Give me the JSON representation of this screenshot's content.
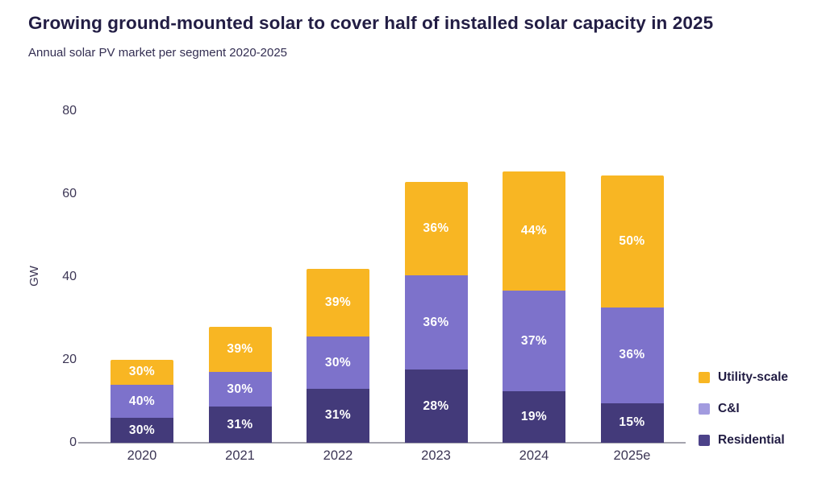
{
  "header": {
    "title": "Growing ground-mounted solar to cover half of installed solar capacity in 2025",
    "subtitle": "Annual solar PV market per segment 2020-2025"
  },
  "colors": {
    "background": "#ffffff",
    "title_text": "#221d44",
    "axis_text": "#3c3655",
    "axis_line": "#a5a4ae",
    "utility_scale": "#F8B623",
    "commercial_industrial": "#7D72CB",
    "residential": "#433A7A",
    "segment_label_text": "#ffffff"
  },
  "chart_data": {
    "type": "bar",
    "stacked": true,
    "title": "Growing ground-mounted solar to cover half of installed solar capacity in 2025",
    "subtitle": "Annual solar PV market per segment 2020-2025",
    "categories": [
      "2020",
      "2021",
      "2022",
      "2023",
      "2024",
      "2025e"
    ],
    "totals_gw": [
      20,
      28,
      42,
      63,
      65.5,
      64.5
    ],
    "series": [
      {
        "name": "Residential",
        "values_pct": [
          30,
          31,
          31,
          28,
          19,
          15
        ],
        "color": "#433A7A",
        "legend_color": "#4C4289"
      },
      {
        "name": "C&I",
        "values_pct": [
          40,
          30,
          30,
          36,
          37,
          36
        ],
        "color": "#7D72CB",
        "legend_color": "#A29BDF"
      },
      {
        "name": "Utility-scale",
        "values_pct": [
          30,
          39,
          39,
          36,
          44,
          50
        ],
        "color": "#F8B623",
        "legend_color": "#F8B623"
      }
    ],
    "label_format": "percent",
    "xlabel": "",
    "ylabel": "GW",
    "y_ticks": [
      0,
      20,
      40,
      60,
      80
    ],
    "ylim": [
      0,
      80
    ],
    "grid": false,
    "legend_position": "bottom-right",
    "legend_order_top_to_bottom": [
      "Utility-scale",
      "C&I",
      "Residential"
    ]
  }
}
